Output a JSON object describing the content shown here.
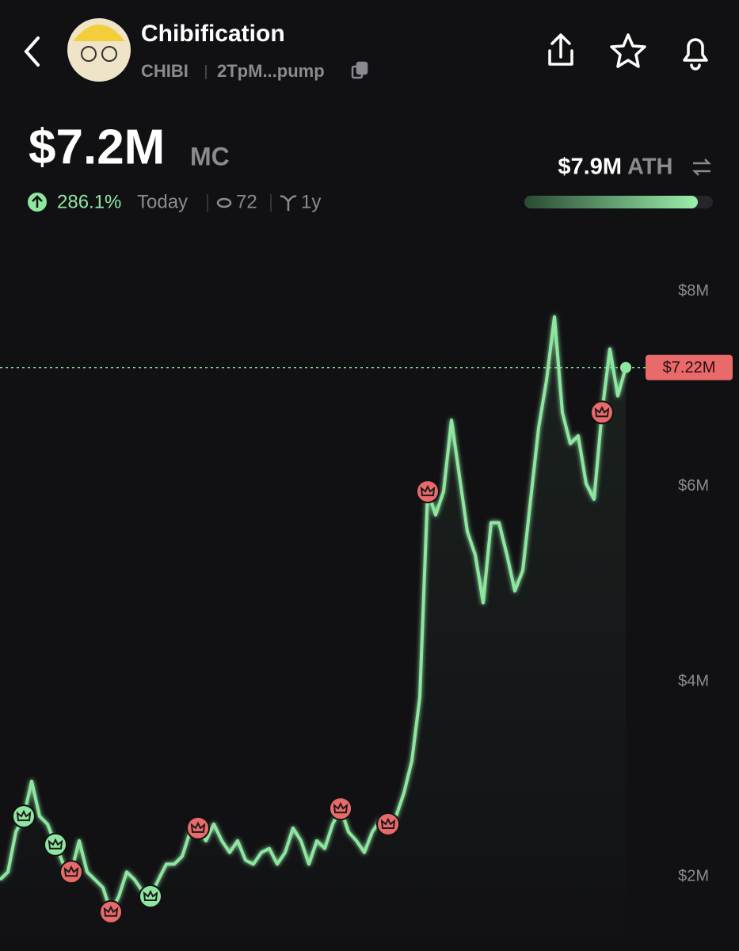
{
  "header": {
    "name": "Chibification",
    "ticker": "CHIBI",
    "address": "2TpM...pump"
  },
  "stats": {
    "market_cap": "$7.2M",
    "mc_label": "MC",
    "change": "286.1%",
    "period": "Today",
    "watchers": "72",
    "age": "1y",
    "ath": "$7.9M",
    "ath_label": "ATH"
  },
  "chart_data": {
    "type": "line",
    "color": "#8ee6a0",
    "values": [
      1970000,
      2050000,
      2460000,
      2620000,
      2980000,
      2620000,
      2540000,
      2330000,
      2130000,
      2050000,
      2370000,
      2050000,
      1970000,
      1890000,
      1640000,
      1800000,
      2050000,
      1970000,
      1850000,
      1800000,
      1970000,
      2130000,
      2130000,
      2210000,
      2460000,
      2500000,
      2370000,
      2540000,
      2370000,
      2250000,
      2370000,
      2170000,
      2130000,
      2250000,
      2290000,
      2130000,
      2250000,
      2500000,
      2370000,
      2130000,
      2370000,
      2290000,
      2540000,
      2700000,
      2460000,
      2370000,
      2250000,
      2460000,
      2580000,
      2540000,
      2620000,
      2860000,
      3190000,
      3840000,
      5950000,
      5710000,
      5950000,
      6680000,
      6110000,
      5540000,
      5300000,
      4810000,
      5630000,
      5630000,
      5300000,
      4930000,
      5140000,
      5870000,
      6600000,
      7090000,
      7740000,
      6760000,
      6440000,
      6520000,
      6030000,
      5870000,
      6760000,
      7410000,
      6930000,
      7220000
    ],
    "markers": [
      {
        "index": 3,
        "color": "#8ee6a0"
      },
      {
        "index": 7,
        "color": "#8ee6a0"
      },
      {
        "index": 9,
        "color": "#e86a6a"
      },
      {
        "index": 14,
        "color": "#e86a6a"
      },
      {
        "index": 19,
        "color": "#8ee6a0"
      },
      {
        "index": 25,
        "color": "#e86a6a"
      },
      {
        "index": 43,
        "color": "#e86a6a"
      },
      {
        "index": 49,
        "color": "#e86a6a"
      },
      {
        "index": 54,
        "color": "#e86a6a"
      },
      {
        "index": 76,
        "color": "#e86a6a"
      }
    ],
    "current": 7220000,
    "current_label": "$7.22M",
    "ylim": [
      1240000,
      8550000
    ],
    "yticks": [
      {
        "value": 2000000,
        "label": "$2M"
      },
      {
        "value": 4000000,
        "label": "$4M"
      },
      {
        "value": 6000000,
        "label": "$6M"
      },
      {
        "value": 8000000,
        "label": "$8M"
      }
    ]
  }
}
